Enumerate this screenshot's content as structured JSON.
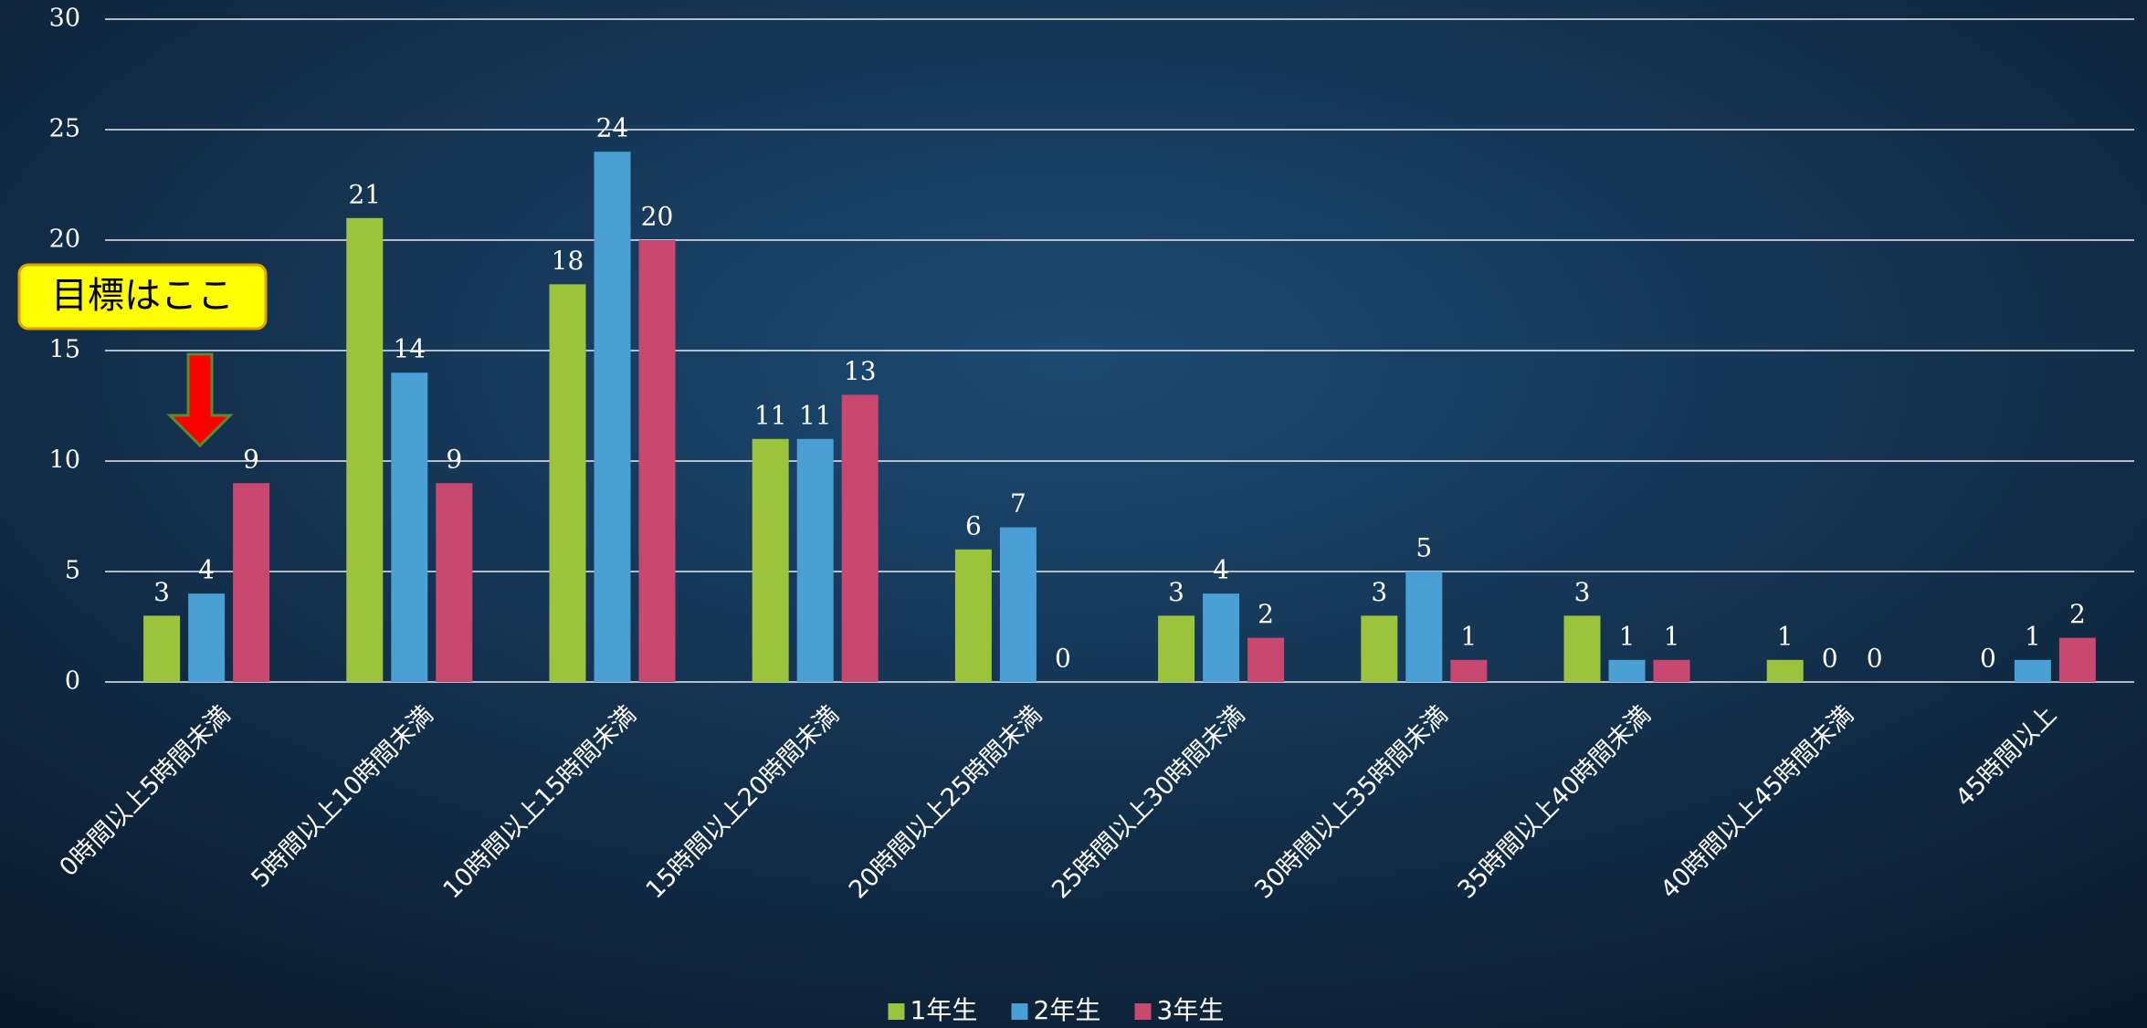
{
  "chart_data": {
    "type": "bar",
    "categories": [
      "0時間以上5時間未満",
      "5時間以上10時間未満",
      "10時間以上15時間未満",
      "15時間以上20時間未満",
      "20時間以上25時間未満",
      "25時間以上30時間未満",
      "30時間以上35時間未満",
      "35時間以上40時間未満",
      "40時間以上45時間未満",
      "45時間以上"
    ],
    "series": [
      {
        "name": "1年生",
        "color": "#9bc43c",
        "values": [
          3,
          21,
          18,
          11,
          6,
          3,
          3,
          3,
          1,
          0
        ]
      },
      {
        "name": "2年生",
        "color": "#4a9fd5",
        "values": [
          4,
          14,
          24,
          11,
          7,
          4,
          5,
          1,
          0,
          1
        ]
      },
      {
        "name": "3年生",
        "color": "#c9486f",
        "values": [
          9,
          9,
          20,
          13,
          0,
          2,
          1,
          1,
          0,
          2
        ]
      }
    ],
    "ylim": [
      0,
      30
    ],
    "yticks": [
      0,
      5,
      10,
      15,
      20,
      25,
      30
    ],
    "grid": true,
    "legend": "bottom",
    "annotation": "目標はここ"
  }
}
